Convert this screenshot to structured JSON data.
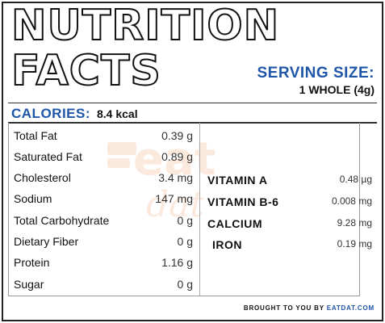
{
  "header": {
    "title_line1": "NUTRITION",
    "title_line2": "FACTS",
    "serving_label": "SERVING SIZE:",
    "serving_value": "1 WHOLE (4g)"
  },
  "calories": {
    "label": "CALORIES:",
    "value": "8.4 kcal"
  },
  "nutrients": [
    {
      "name": "Total Fat",
      "value": "0.39 g"
    },
    {
      "name": "Saturated Fat",
      "value": "0.89 g"
    },
    {
      "name": "Cholesterol",
      "value": "3.4 mg"
    },
    {
      "name": "Sodium",
      "value": "147 mg"
    },
    {
      "name": "Total Carbohydrate",
      "value": "0 g"
    },
    {
      "name": "Dietary Fiber",
      "value": "0 g"
    },
    {
      "name": "Protein",
      "value": "1.16 g"
    },
    {
      "name": "Sugar",
      "value": "0 g"
    }
  ],
  "vitamins": [
    {
      "name": "VITAMIN A",
      "value": "0.48 µg"
    },
    {
      "name": "VITAMIN B-6",
      "value": "0.008 mg"
    },
    {
      "name": "CALCIUM",
      "value": "9.28 mg"
    },
    {
      "name": "IRON",
      "value": "0.19 mg"
    }
  ],
  "watermark": {
    "text": "eat",
    "text2": "dat",
    "color": "#f08a4b"
  },
  "footer": {
    "prefix": "BROUGHT TO YOU BY ",
    "brand": "EATDAT.COM"
  },
  "colors": {
    "accent": "#1f56a8",
    "text": "#111111"
  }
}
